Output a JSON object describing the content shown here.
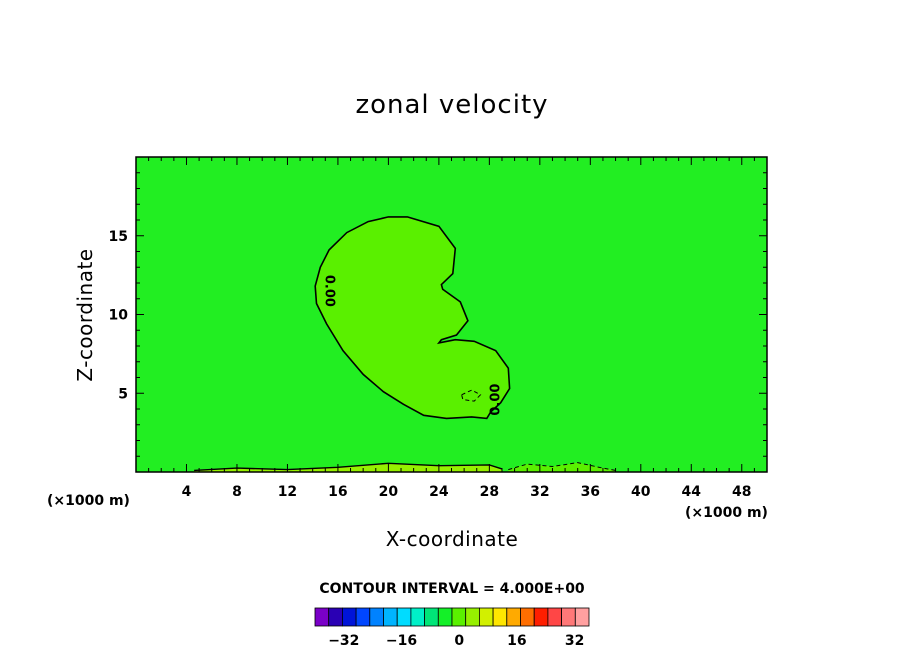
{
  "chart_data": {
    "type": "contour",
    "title": "zonal velocity",
    "xlabel": "X-coordinate",
    "ylabel": "Z-coordinate",
    "x_unit": "(×1000 m)",
    "y_unit": "(×1000 m)",
    "xlim": [
      0,
      50
    ],
    "ylim": [
      0,
      20
    ],
    "x_ticks": [
      4,
      8,
      12,
      16,
      20,
      24,
      28,
      32,
      36,
      40,
      44,
      48
    ],
    "y_ticks": [
      5,
      10,
      15
    ],
    "background_color": "#22ee22",
    "contour_label": "0.00",
    "contour_interval_text": "CONTOUR INTERVAL = 4.000E+00",
    "colorbar": {
      "ticks": [
        -32,
        -16,
        0,
        16,
        32
      ],
      "min": -40,
      "max": 36,
      "colors": [
        "#7a00c8",
        "#2a00b4",
        "#0014d8",
        "#0046ff",
        "#0082ff",
        "#00b4ff",
        "#00dcff",
        "#00f0c8",
        "#00e678",
        "#14f028",
        "#5af000",
        "#96f000",
        "#d2f000",
        "#ffe600",
        "#ffaa00",
        "#ff6e00",
        "#ff1e00",
        "#ff4646",
        "#ff7878",
        "#ffa0a0"
      ]
    },
    "features": [
      {
        "name": "zero-contour-plume",
        "value": 0.0,
        "x": [
          21.5,
          24,
          25.3,
          25.1,
          24.2,
          24.3,
          25.7,
          26.3,
          25.4,
          24.2,
          24,
          25.3,
          26.8,
          28.5,
          29.5,
          29.6,
          28.9,
          28.1,
          27.8,
          26.6,
          24.6,
          22.8,
          21.2,
          19.6,
          18,
          16.4,
          15.1,
          14.3,
          14.2,
          14.6,
          15.3,
          16.7,
          18.4,
          20,
          21.5
        ],
        "y": [
          16.2,
          15.6,
          14.2,
          12.6,
          11.9,
          11.6,
          10.8,
          9.6,
          8.7,
          8.4,
          8.2,
          8.4,
          8.3,
          7.7,
          6.6,
          5.3,
          4.4,
          3.8,
          3.4,
          3.5,
          3.4,
          3.6,
          4.3,
          5.1,
          6.2,
          7.7,
          9.4,
          10.7,
          11.8,
          13,
          14.1,
          15.2,
          15.9,
          16.2,
          16.2
        ]
      },
      {
        "name": "negative-cell",
        "value": -4.0,
        "x": [
          25.8,
          26.6,
          27.3,
          26.8,
          25.9,
          25.8
        ],
        "y": [
          4.9,
          5.2,
          4.9,
          4.5,
          4.6,
          4.9
        ]
      },
      {
        "name": "near-surface-layer",
        "value": 4.0,
        "x": [
          4.6,
          8,
          12,
          16,
          20,
          24,
          28,
          29
        ],
        "y": [
          0.1,
          0.25,
          0.15,
          0.3,
          0.55,
          0.4,
          0.45,
          0.2
        ]
      },
      {
        "name": "surface-negative-region",
        "value": -4.0,
        "x": [
          29.5,
          31,
          33,
          35,
          37,
          38
        ],
        "y": [
          0.15,
          0.5,
          0.35,
          0.6,
          0.25,
          0.1
        ]
      }
    ]
  }
}
